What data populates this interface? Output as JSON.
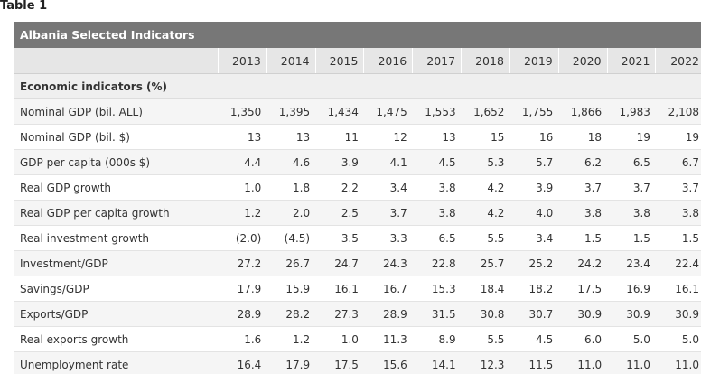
{
  "caption": "Table 1",
  "table_title": "Albania Selected Indicators",
  "years": [
    "2013",
    "2014",
    "2015",
    "2016",
    "2017",
    "2018",
    "2019",
    "2020",
    "2021",
    "2022"
  ],
  "section_label": "Economic indicators (%)",
  "rows": [
    {
      "label": "Nominal GDP (bil. ALL)",
      "values": [
        "1,350",
        "1,395",
        "1,434",
        "1,475",
        "1,553",
        "1,652",
        "1,755",
        "1,866",
        "1,983",
        "2,108"
      ]
    },
    {
      "label": "Nominal GDP (bil. $)",
      "values": [
        "13",
        "13",
        "11",
        "12",
        "13",
        "15",
        "16",
        "18",
        "19",
        "19"
      ]
    },
    {
      "label": "GDP per capita (000s $)",
      "values": [
        "4.4",
        "4.6",
        "3.9",
        "4.1",
        "4.5",
        "5.3",
        "5.7",
        "6.2",
        "6.5",
        "6.7"
      ]
    },
    {
      "label": "Real GDP growth",
      "values": [
        "1.0",
        "1.8",
        "2.2",
        "3.4",
        "3.8",
        "4.2",
        "3.9",
        "3.7",
        "3.7",
        "3.7"
      ]
    },
    {
      "label": "Real GDP per capita growth",
      "values": [
        "1.2",
        "2.0",
        "2.5",
        "3.7",
        "3.8",
        "4.2",
        "4.0",
        "3.8",
        "3.8",
        "3.8"
      ]
    },
    {
      "label": "Real investment growth",
      "values": [
        "(2.0)",
        "(4.5)",
        "3.5",
        "3.3",
        "6.5",
        "5.5",
        "3.4",
        "1.5",
        "1.5",
        "1.5"
      ]
    },
    {
      "label": "Investment/GDP",
      "values": [
        "27.2",
        "26.7",
        "24.7",
        "24.3",
        "22.8",
        "25.7",
        "25.2",
        "24.2",
        "23.4",
        "22.4"
      ]
    },
    {
      "label": "Savings/GDP",
      "values": [
        "17.9",
        "15.9",
        "16.1",
        "16.7",
        "15.3",
        "18.4",
        "18.2",
        "17.5",
        "16.9",
        "16.1"
      ]
    },
    {
      "label": "Exports/GDP",
      "values": [
        "28.9",
        "28.2",
        "27.3",
        "28.9",
        "31.5",
        "30.8",
        "30.7",
        "30.9",
        "30.9",
        "30.9"
      ]
    },
    {
      "label": "Real exports growth",
      "values": [
        "1.6",
        "1.2",
        "1.0",
        "11.3",
        "8.9",
        "5.5",
        "4.5",
        "6.0",
        "5.0",
        "5.0"
      ]
    },
    {
      "label": "Unemployment rate",
      "values": [
        "16.4",
        "17.9",
        "17.5",
        "15.6",
        "14.1",
        "12.3",
        "11.5",
        "11.0",
        "11.0",
        "11.0"
      ]
    }
  ]
}
